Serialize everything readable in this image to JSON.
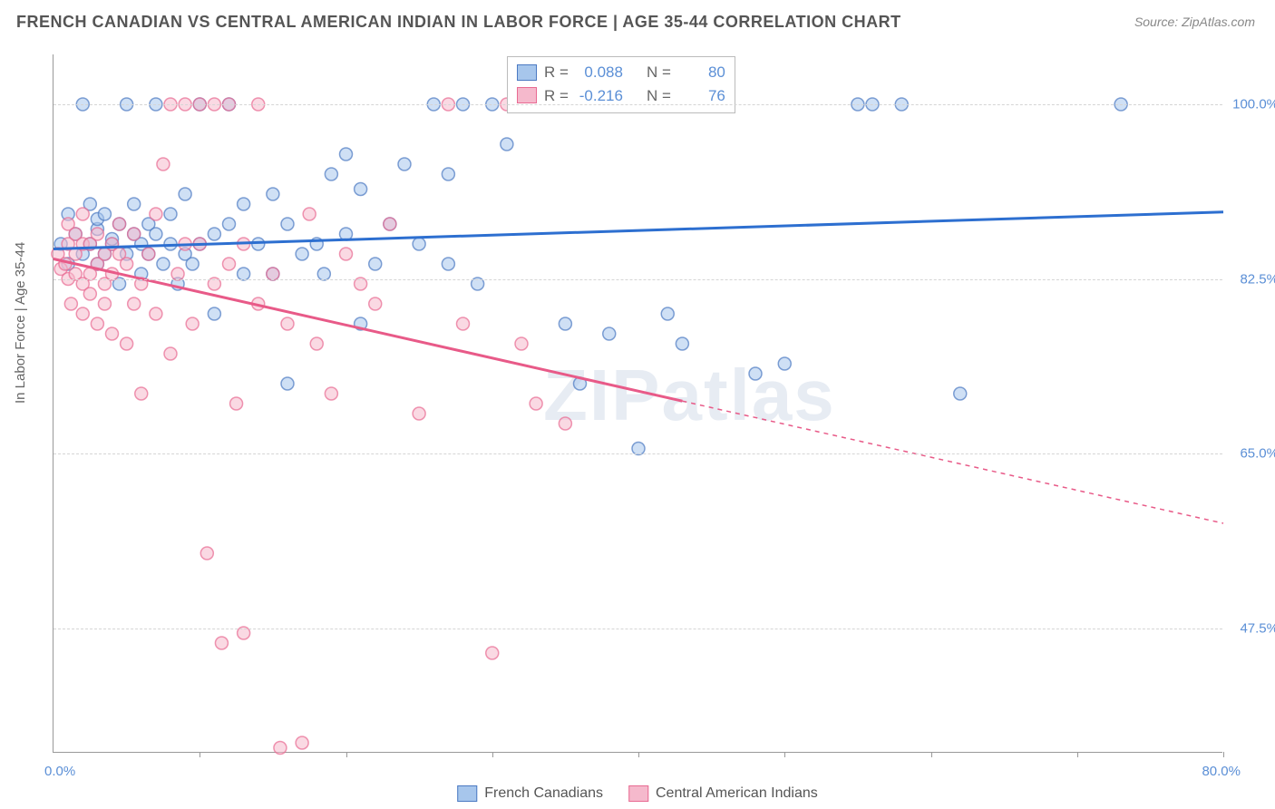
{
  "title": "FRENCH CANADIAN VS CENTRAL AMERICAN INDIAN IN LABOR FORCE | AGE 35-44 CORRELATION CHART",
  "source": "Source: ZipAtlas.com",
  "y_axis_label": "In Labor Force | Age 35-44",
  "watermark": "ZIPatlas",
  "x_label_start": "0.0%",
  "x_label_end": "80.0%",
  "chart": {
    "type": "scatter",
    "xlim": [
      0,
      80
    ],
    "ylim": [
      35,
      105
    ],
    "y_grid": [
      47.5,
      65.0,
      82.5,
      100.0
    ],
    "y_tick_labels": [
      "47.5%",
      "65.0%",
      "82.5%",
      "100.0%"
    ],
    "x_ticks": [
      10,
      20,
      30,
      40,
      50,
      60,
      70,
      80
    ],
    "background_color": "#ffffff",
    "grid_color": "#d5d5d5",
    "marker_radius": 7,
    "marker_opacity": 0.55,
    "marker_stroke_width": 1.5,
    "series": [
      {
        "name": "French Canadians",
        "color_fill": "#a7c6ec",
        "color_stroke": "#4b79c2",
        "line_color": "#2d6fd0",
        "line_width": 3,
        "r": "0.088",
        "n": "80",
        "trend": {
          "x1": 0,
          "y1": 85.5,
          "x2": 80,
          "y2": 89.2,
          "solid_to_x": 80
        },
        "points": [
          [
            0.5,
            86
          ],
          [
            1,
            84
          ],
          [
            1,
            89
          ],
          [
            1.5,
            87
          ],
          [
            2,
            85
          ],
          [
            2,
            100
          ],
          [
            2.5,
            86
          ],
          [
            2.5,
            90
          ],
          [
            3,
            84
          ],
          [
            3,
            87.5
          ],
          [
            3,
            88.5
          ],
          [
            3.5,
            85
          ],
          [
            3.5,
            89
          ],
          [
            4,
            86
          ],
          [
            4,
            86.5
          ],
          [
            4.5,
            82
          ],
          [
            4.5,
            88
          ],
          [
            5,
            85
          ],
          [
            5,
            100
          ],
          [
            5.5,
            87
          ],
          [
            5.5,
            90
          ],
          [
            6,
            83
          ],
          [
            6,
            86
          ],
          [
            6.5,
            85
          ],
          [
            6.5,
            88
          ],
          [
            7,
            87
          ],
          [
            7,
            100
          ],
          [
            7.5,
            84
          ],
          [
            8,
            86
          ],
          [
            8,
            89
          ],
          [
            8.5,
            82
          ],
          [
            9,
            85
          ],
          [
            9,
            91
          ],
          [
            9.5,
            84
          ],
          [
            10,
            86
          ],
          [
            10,
            100
          ],
          [
            11,
            79
          ],
          [
            11,
            87
          ],
          [
            12,
            88
          ],
          [
            12,
            100
          ],
          [
            13,
            83
          ],
          [
            13,
            90
          ],
          [
            14,
            86
          ],
          [
            15,
            83
          ],
          [
            15,
            91
          ],
          [
            16,
            72
          ],
          [
            16,
            88
          ],
          [
            17,
            85
          ],
          [
            18,
            86
          ],
          [
            18.5,
            83
          ],
          [
            19,
            93
          ],
          [
            20,
            87
          ],
          [
            20,
            95
          ],
          [
            21,
            78
          ],
          [
            21,
            91.5
          ],
          [
            22,
            84
          ],
          [
            23,
            88
          ],
          [
            24,
            94
          ],
          [
            25,
            86
          ],
          [
            26,
            100
          ],
          [
            27,
            84
          ],
          [
            27,
            93
          ],
          [
            28,
            100
          ],
          [
            29,
            82
          ],
          [
            30,
            100
          ],
          [
            31,
            96
          ],
          [
            32,
            100
          ],
          [
            33,
            100
          ],
          [
            35,
            78
          ],
          [
            36,
            72
          ],
          [
            37,
            100
          ],
          [
            38,
            77
          ],
          [
            40,
            65.5
          ],
          [
            42,
            79
          ],
          [
            43,
            76
          ],
          [
            48,
            73
          ],
          [
            50,
            74
          ],
          [
            55,
            100
          ],
          [
            56,
            100
          ],
          [
            58,
            100
          ],
          [
            62,
            71
          ],
          [
            73,
            100
          ]
        ]
      },
      {
        "name": "Central American Indians",
        "color_fill": "#f5b9cc",
        "color_stroke": "#e86a92",
        "line_color": "#e85a88",
        "line_width": 3,
        "r": "-0.216",
        "n": "76",
        "trend": {
          "x1": 0,
          "y1": 84.5,
          "x2": 80,
          "y2": 58,
          "solid_to_x": 43
        },
        "points": [
          [
            0.3,
            85
          ],
          [
            0.5,
            83.5
          ],
          [
            0.8,
            84
          ],
          [
            1,
            82.5
          ],
          [
            1,
            86
          ],
          [
            1,
            88
          ],
          [
            1.2,
            80
          ],
          [
            1.5,
            85
          ],
          [
            1.5,
            83
          ],
          [
            1.5,
            87
          ],
          [
            2,
            79
          ],
          [
            2,
            82
          ],
          [
            2,
            86
          ],
          [
            2,
            89
          ],
          [
            2.5,
            83
          ],
          [
            2.5,
            86
          ],
          [
            2.5,
            81
          ],
          [
            3,
            78
          ],
          [
            3,
            84
          ],
          [
            3,
            87
          ],
          [
            3.5,
            80
          ],
          [
            3.5,
            85
          ],
          [
            3.5,
            82
          ],
          [
            4,
            86
          ],
          [
            4,
            77
          ],
          [
            4,
            83
          ],
          [
            4.5,
            85
          ],
          [
            4.5,
            88
          ],
          [
            5,
            76
          ],
          [
            5,
            84
          ],
          [
            5.5,
            80
          ],
          [
            5.5,
            87
          ],
          [
            6,
            71
          ],
          [
            6,
            82
          ],
          [
            6.5,
            85
          ],
          [
            7,
            79
          ],
          [
            7,
            89
          ],
          [
            7.5,
            94
          ],
          [
            8,
            75
          ],
          [
            8,
            100
          ],
          [
            8.5,
            83
          ],
          [
            9,
            86
          ],
          [
            9,
            100
          ],
          [
            9.5,
            78
          ],
          [
            10,
            86
          ],
          [
            10,
            100
          ],
          [
            10.5,
            55
          ],
          [
            11,
            82
          ],
          [
            11,
            100
          ],
          [
            11.5,
            46
          ],
          [
            12,
            84
          ],
          [
            12,
            100
          ],
          [
            12.5,
            70
          ],
          [
            13,
            86
          ],
          [
            13,
            47
          ],
          [
            14,
            80
          ],
          [
            14,
            100
          ],
          [
            15,
            83
          ],
          [
            15.5,
            35.5
          ],
          [
            16,
            78
          ],
          [
            17,
            36
          ],
          [
            17.5,
            89
          ],
          [
            18,
            76
          ],
          [
            19,
            71
          ],
          [
            20,
            85
          ],
          [
            21,
            82
          ],
          [
            22,
            80
          ],
          [
            23,
            88
          ],
          [
            25,
            69
          ],
          [
            27,
            100
          ],
          [
            28,
            78
          ],
          [
            30,
            45
          ],
          [
            31,
            100
          ],
          [
            32,
            76
          ],
          [
            33,
            70
          ],
          [
            35,
            68
          ]
        ]
      }
    ]
  },
  "stats_box": {
    "r_label": "R =",
    "n_label": "N ="
  },
  "legend": [
    {
      "label": "French Canadians",
      "fill": "#a7c6ec",
      "stroke": "#4b79c2"
    },
    {
      "label": "Central American Indians",
      "fill": "#f5b9cc",
      "stroke": "#e86a92"
    }
  ]
}
